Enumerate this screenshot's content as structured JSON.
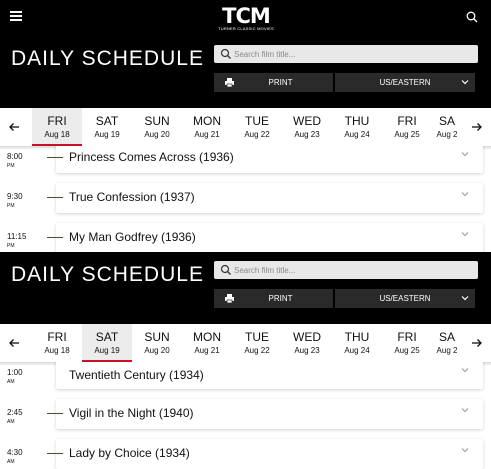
{
  "brand": {
    "logo": "TCM",
    "logo_sub": "TURNER CLASSIC MOVIES"
  },
  "icons": {
    "menu": "hamburger-menu-icon",
    "search": "search-icon",
    "print": "printer-icon",
    "chevron": "chevron-down-icon",
    "prev": "arrow-left-icon",
    "next": "arrow-right-icon"
  },
  "colors": {
    "accent": "#c8102e",
    "header_bg": "#000000",
    "button_bg": "#2a2a2a"
  },
  "panels": [
    {
      "title": "DAILY SCHEDULE",
      "search_placeholder": "Search film title...",
      "print_label": "PRINT",
      "timezone_label": "US/EASTERN",
      "days": [
        {
          "name": "FRI",
          "date": "Aug 18",
          "active": true
        },
        {
          "name": "SAT",
          "date": "Aug 19",
          "active": false
        },
        {
          "name": "SUN",
          "date": "Aug 20",
          "active": false
        },
        {
          "name": "MON",
          "date": "Aug 21",
          "active": false
        },
        {
          "name": "TUE",
          "date": "Aug 22",
          "active": false
        },
        {
          "name": "WED",
          "date": "Aug 23",
          "active": false
        },
        {
          "name": "THU",
          "date": "Aug 24",
          "active": false
        },
        {
          "name": "FRI",
          "date": "Aug 25",
          "active": false
        },
        {
          "name": "SA",
          "date": "Aug 2",
          "active": false
        }
      ],
      "listings": [
        {
          "time": "8:00",
          "ampm": "PM",
          "title": "Princess Comes Across (1936)"
        },
        {
          "time": "9:30",
          "ampm": "PM",
          "title": "True Confession (1937)"
        },
        {
          "time": "11:15",
          "ampm": "PM",
          "title": "My Man Godfrey (1936)"
        }
      ]
    },
    {
      "title": "DAILY SCHEDULE",
      "search_placeholder": "Search film title...",
      "print_label": "PRINT",
      "timezone_label": "US/EASTERN",
      "days": [
        {
          "name": "FRI",
          "date": "Aug 18",
          "active": false
        },
        {
          "name": "SAT",
          "date": "Aug 19",
          "active": true
        },
        {
          "name": "SUN",
          "date": "Aug 20",
          "active": false
        },
        {
          "name": "MON",
          "date": "Aug 21",
          "active": false
        },
        {
          "name": "TUE",
          "date": "Aug 22",
          "active": false
        },
        {
          "name": "WED",
          "date": "Aug 23",
          "active": false
        },
        {
          "name": "THU",
          "date": "Aug 24",
          "active": false
        },
        {
          "name": "FRI",
          "date": "Aug 25",
          "active": false
        },
        {
          "name": "SA",
          "date": "Aug 2",
          "active": false
        }
      ],
      "listings": [
        {
          "time": "1:00",
          "ampm": "AM",
          "title": "Twentieth Century (1934)"
        },
        {
          "time": "2:45",
          "ampm": "AM",
          "title": "Vigil in the Night (1940)"
        },
        {
          "time": "4:30",
          "ampm": "AM",
          "title": "Lady by Choice (1934)"
        }
      ]
    }
  ]
}
